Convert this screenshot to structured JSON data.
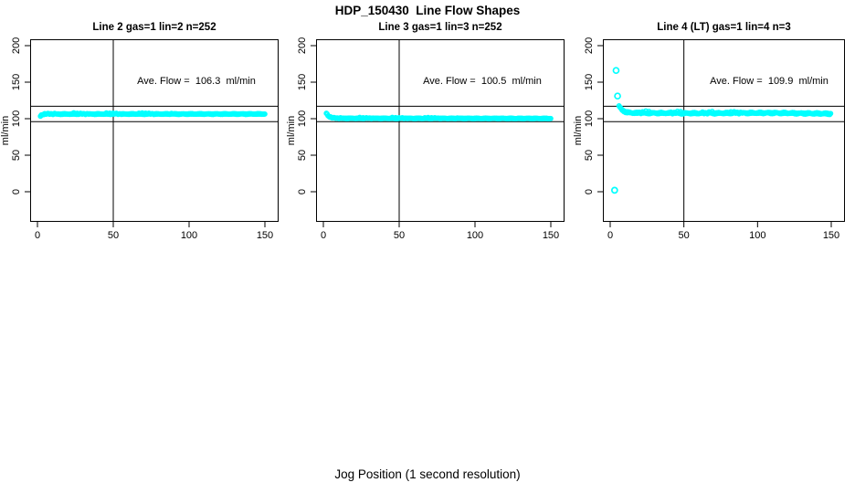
{
  "page": {
    "title": "HDP_150430  Line Flow Shapes",
    "xlabel": "Jog Position (1 second resolution)"
  },
  "colors": {
    "points": "#00FFFF",
    "axis": "#000000",
    "background": "#FFFFFF"
  },
  "chart_data": [
    {
      "type": "scatter",
      "title": "Line 2 gas=1 lin=2 n=252",
      "line": "2",
      "gas": 1,
      "lin": 2,
      "n": 252,
      "annotation": "Ave. Flow =  106.3  ml/min",
      "ave_flow_ml_min": 106.3,
      "ylabel": "ml/min",
      "xticks": [
        0,
        50,
        100,
        150
      ],
      "yticks": [
        0,
        50,
        100,
        150,
        200
      ],
      "xlim": [
        0,
        150
      ],
      "ylim": [
        0,
        200
      ],
      "grid": false,
      "vline_x": 50,
      "hlines_y": [
        117,
        96
      ],
      "band_profile": [
        [
          2,
          103.5
        ],
        [
          3,
          105.5
        ],
        [
          6,
          106.3
        ],
        [
          150,
          106.4
        ]
      ],
      "band_noise": 0.7,
      "outliers": []
    },
    {
      "type": "scatter",
      "title": "Line 3 gas=1 lin=3 n=252",
      "line": "3",
      "gas": 1,
      "lin": 3,
      "n": 252,
      "annotation": "Ave. Flow =  100.5  ml/min",
      "ave_flow_ml_min": 100.5,
      "ylabel": "ml/min",
      "xticks": [
        0,
        50,
        100,
        150
      ],
      "yticks": [
        0,
        50,
        100,
        150,
        200
      ],
      "xlim": [
        0,
        150
      ],
      "ylim": [
        0,
        200
      ],
      "grid": false,
      "vline_x": 50,
      "hlines_y": [
        117,
        96
      ],
      "band_profile": [
        [
          2,
          107.5
        ],
        [
          3,
          104.5
        ],
        [
          4,
          102.5
        ],
        [
          6,
          101
        ],
        [
          10,
          100.5
        ],
        [
          150,
          100.3
        ]
      ],
      "band_noise": 0.55,
      "outliers": []
    },
    {
      "type": "scatter",
      "title": "Line 4 (LT) gas=1 lin=4 n=3",
      "line": "4 (LT)",
      "gas": 1,
      "lin": 4,
      "n": 3,
      "annotation": "Ave. Flow =  109.9  ml/min",
      "ave_flow_ml_min": 109.9,
      "ylabel": "ml/min",
      "xticks": [
        0,
        50,
        100,
        150
      ],
      "yticks": [
        0,
        50,
        100,
        150,
        200
      ],
      "xlim": [
        0,
        150
      ],
      "ylim": [
        0,
        200
      ],
      "grid": false,
      "vline_x": 50,
      "hlines_y": [
        117,
        96
      ],
      "band_profile": [
        [
          6,
          117
        ],
        [
          8,
          112
        ],
        [
          11,
          108.7
        ],
        [
          16,
          107.8
        ],
        [
          60,
          107.4
        ],
        [
          110,
          107.9
        ],
        [
          150,
          106.8
        ]
      ],
      "band_noise": 1.25,
      "outliers": [
        [
          4,
          166
        ],
        [
          5,
          131
        ],
        [
          3,
          2
        ]
      ]
    }
  ]
}
